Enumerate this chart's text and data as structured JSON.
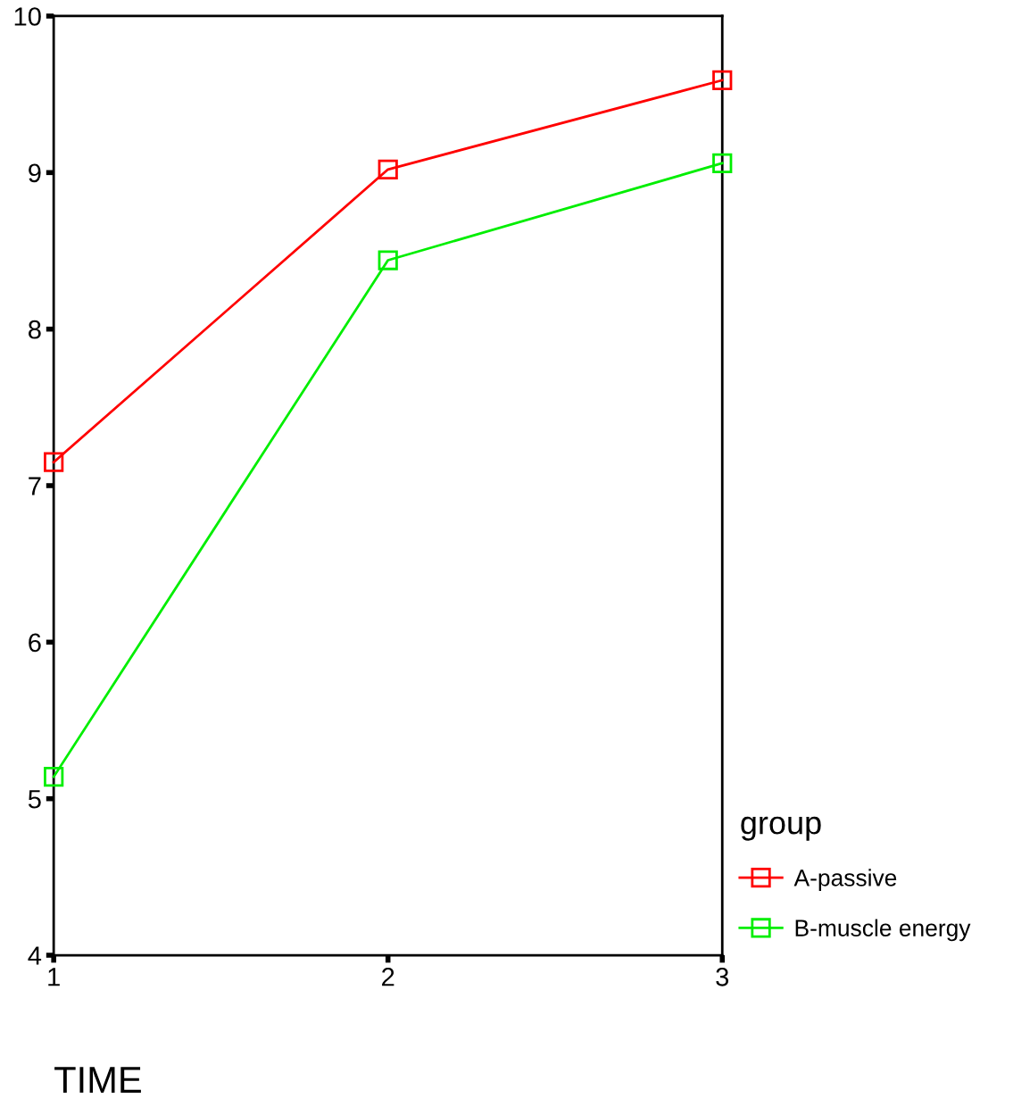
{
  "chart_data": {
    "type": "line",
    "xlabel": "TIME",
    "legend_title": "group",
    "x": [
      1,
      2,
      3
    ],
    "series": [
      {
        "name": "A-passive",
        "color": "#ff0000",
        "values": [
          7.15,
          9.02,
          9.59
        ]
      },
      {
        "name": "B-muscle energy",
        "color": "#00ee00",
        "values": [
          5.14,
          8.44,
          9.06
        ]
      }
    ],
    "xlim": [
      1,
      3
    ],
    "xticks": [
      1,
      2,
      3
    ],
    "ylim": [
      4,
      10
    ],
    "yticks": [
      4,
      5,
      6,
      7,
      8,
      9,
      10
    ],
    "marker": "square",
    "line_style": "solid",
    "legend": "right",
    "grid": false
  }
}
